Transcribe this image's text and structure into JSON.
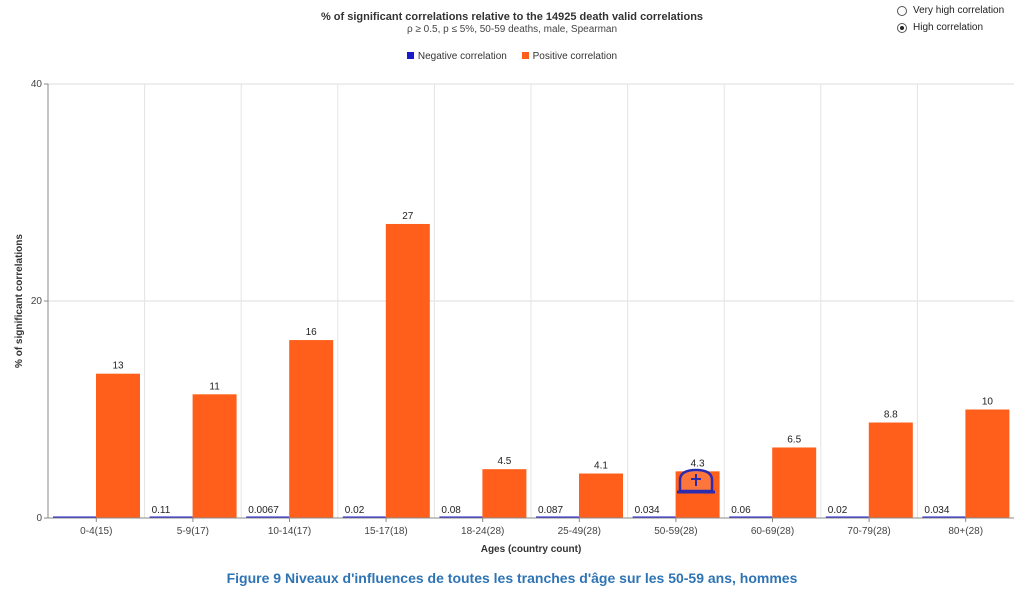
{
  "chart_data": {
    "type": "bar",
    "title": "% of significant correlations relative to the 14925 death valid correlations",
    "subtitle": "ρ ≥ 0.5, p ≤ 5%, 50-59 deaths, male, Spearman",
    "xlabel": "Ages (country count)",
    "ylabel": "% of significant correlations",
    "ylim": [
      0,
      40
    ],
    "yticks": [
      0,
      20,
      40
    ],
    "categories": [
      "0-4(15)",
      "5-9(17)",
      "10-14(17)",
      "15-17(18)",
      "18-24(28)",
      "25-49(28)",
      "50-59(28)",
      "60-69(28)",
      "70-79(28)",
      "80+(28)"
    ],
    "series": [
      {
        "name": "Negative correlation",
        "color": "#1a1acc",
        "values": [
          0,
          0.11,
          0.0067,
          0.02,
          0.08,
          0.087,
          0.034,
          0.06,
          0.02,
          0.034
        ],
        "labels": [
          "",
          "0.11",
          "0.0067",
          "0.02",
          "0.08",
          "0.087",
          "0.034",
          "0.06",
          "0.02",
          "0.034"
        ]
      },
      {
        "name": "Positive correlation",
        "color": "#ff5f1a",
        "values": [
          13.3,
          11.4,
          16.4,
          27.1,
          4.5,
          4.1,
          4.3,
          6.5,
          8.8,
          10
        ],
        "labels": [
          "13",
          "11",
          "16",
          "27",
          "4.5",
          "4.1",
          "4.3",
          "6.5",
          "8.8",
          "10"
        ]
      }
    ],
    "grid": true,
    "legend_position": "top-center",
    "annotation": "tombstone-icon"
  },
  "controls": {
    "options": [
      {
        "label": "Very high correlation",
        "selected": false
      },
      {
        "label": "High correlation",
        "selected": true
      }
    ]
  },
  "caption": "Figure 9 Niveaux d'influences de toutes les tranches d'âge sur les 50-59 ans, hommes"
}
